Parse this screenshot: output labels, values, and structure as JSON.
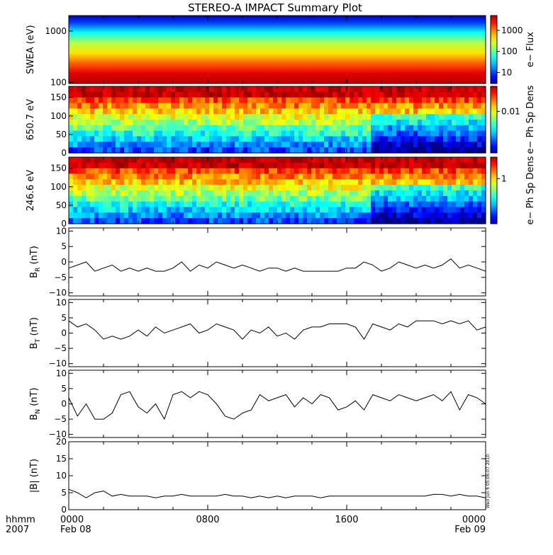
{
  "chart_data": {
    "title": "STEREO-A IMPACT Summary Plot",
    "x_axis": {
      "corner_labels": [
        "hhmm",
        "2007"
      ],
      "range_hours": [
        0,
        24
      ],
      "ticks": [
        {
          "hour": 0,
          "time": "0000",
          "date": "Feb 08"
        },
        {
          "hour": 8,
          "time": "0800",
          "date": ""
        },
        {
          "hour": 16,
          "time": "1600",
          "date": ""
        },
        {
          "hour": 24,
          "time": "0000",
          "date": "Feb 09"
        }
      ]
    },
    "timestamp": "Wed Jun  6 05:06:07 2010",
    "panels": [
      {
        "id": "swea",
        "type": "heatmap",
        "ylabel": "SWEA (eV)",
        "ylog": true,
        "ylim": [
          95,
          2000
        ],
        "yticks": [
          "1000",
          "100"
        ],
        "colorbar": {
          "label": "e− Flux",
          "scale": "log",
          "ticks": [
            "1000",
            "100",
            "10"
          ],
          "range": [
            3,
            5000
          ]
        }
      },
      {
        "id": "pad650",
        "type": "heatmap",
        "ylabel": "650.7 eV",
        "ylim": [
          0,
          180
        ],
        "yticks": [
          "150",
          "100",
          "50",
          "0"
        ],
        "colorbar": {
          "label": "e− Ph Sp Dens",
          "scale": "log",
          "ticks": [
            "0.01"
          ],
          "range": [
            0.001,
            0.04
          ]
        }
      },
      {
        "id": "pad246",
        "type": "heatmap",
        "ylabel": "246.6 eV",
        "ylim": [
          0,
          180
        ],
        "yticks": [
          "150",
          "100",
          "50",
          "0"
        ],
        "colorbar": {
          "label": "e− Ph Sp Dens",
          "scale": "log",
          "ticks": [
            "1"
          ],
          "range": [
            0.1,
            3
          ]
        }
      },
      {
        "id": "br",
        "type": "line",
        "ylabel": "B",
        "ylabel_sub": "R",
        "ylabel_unit": "(nT)",
        "ylim": [
          -11,
          11
        ],
        "yticks": [
          "10",
          "5",
          "0",
          "−5",
          "−10"
        ],
        "x": [
          0,
          0.5,
          1,
          1.5,
          2,
          2.5,
          3,
          3.5,
          4,
          4.5,
          5,
          5.5,
          6,
          6.5,
          7,
          7.5,
          8,
          8.5,
          9,
          9.5,
          10,
          10.5,
          11,
          11.5,
          12,
          12.5,
          13,
          13.5,
          14,
          14.5,
          15,
          15.5,
          16,
          16.5,
          17,
          17.5,
          18,
          18.5,
          19,
          19.5,
          20,
          20.5,
          21,
          21.5,
          22,
          22.5,
          23,
          23.5,
          24
        ],
        "values": [
          -2,
          -1,
          0,
          -3,
          -2,
          -1,
          -3,
          -2,
          -3,
          -2,
          -3,
          -3,
          -2,
          0,
          -3,
          -1,
          -2,
          0,
          -1,
          -2,
          -1,
          -2,
          -3,
          -2,
          -2,
          -3,
          -2,
          -3,
          -3,
          -3,
          -3,
          -3,
          -2,
          -2,
          0,
          -1,
          -3,
          -2,
          0,
          -1,
          -2,
          -1,
          -2,
          -1,
          1,
          -2,
          -1,
          -2,
          -3
        ]
      },
      {
        "id": "bt",
        "type": "line",
        "ylabel": "B",
        "ylabel_sub": "T",
        "ylabel_unit": "(nT)",
        "ylim": [
          -11,
          11
        ],
        "yticks": [
          "10",
          "5",
          "0",
          "−5",
          "−10"
        ],
        "x": [
          0,
          0.5,
          1,
          1.5,
          2,
          2.5,
          3,
          3.5,
          4,
          4.5,
          5,
          5.5,
          6,
          6.5,
          7,
          7.5,
          8,
          8.5,
          9,
          9.5,
          10,
          10.5,
          11,
          11.5,
          12,
          12.5,
          13,
          13.5,
          14,
          14.5,
          15,
          15.5,
          16,
          16.5,
          17,
          17.5,
          18,
          18.5,
          19,
          19.5,
          20,
          20.5,
          21,
          21.5,
          22,
          22.5,
          23,
          23.5,
          24
        ],
        "values": [
          4,
          2,
          3,
          1,
          -2,
          -1,
          -2,
          -1,
          1,
          -1,
          2,
          0,
          1,
          2,
          3,
          0,
          1,
          3,
          2,
          1,
          -2,
          1,
          0,
          2,
          -1,
          0,
          -2,
          1,
          2,
          2,
          3,
          3,
          3,
          2,
          -2,
          3,
          2,
          1,
          3,
          2,
          4,
          4,
          4,
          3,
          4,
          3,
          4,
          1,
          2
        ]
      },
      {
        "id": "bn",
        "type": "line",
        "ylabel": "B",
        "ylabel_sub": "N",
        "ylabel_unit": "(nT)",
        "ylim": [
          -11,
          11
        ],
        "yticks": [
          "10",
          "5",
          "0",
          "−5",
          "−10"
        ],
        "x": [
          0,
          0.5,
          1,
          1.5,
          2,
          2.5,
          3,
          3.5,
          4,
          4.5,
          5,
          5.5,
          6,
          6.5,
          7,
          7.5,
          8,
          8.5,
          9,
          9.5,
          10,
          10.5,
          11,
          11.5,
          12,
          12.5,
          13,
          13.5,
          14,
          14.5,
          15,
          15.5,
          16,
          16.5,
          17,
          17.5,
          18,
          18.5,
          19,
          19.5,
          20,
          20.5,
          21,
          21.5,
          22,
          22.5,
          23,
          23.5,
          24
        ],
        "values": [
          2,
          -4,
          0,
          -5,
          -5,
          -3,
          3,
          4,
          -1,
          -3,
          0,
          -5,
          3,
          4,
          2,
          4,
          3,
          0,
          -4,
          -5,
          -3,
          -2,
          3,
          1,
          2,
          3,
          -1,
          2,
          0,
          3,
          2,
          -2,
          -1,
          1,
          -2,
          3,
          2,
          1,
          3,
          2,
          1,
          2,
          3,
          1,
          4,
          -2,
          3,
          2,
          0
        ]
      },
      {
        "id": "bmag",
        "type": "line",
        "ylabel": "|B|",
        "ylabel_sub": "",
        "ylabel_unit": "(nT)",
        "ylim": [
          0,
          20
        ],
        "yticks": [
          "20",
          "15",
          "10",
          "5",
          "0"
        ],
        "x": [
          0,
          0.5,
          1,
          1.5,
          2,
          2.5,
          3,
          3.5,
          4,
          4.5,
          5,
          5.5,
          6,
          6.5,
          7,
          7.5,
          8,
          8.5,
          9,
          9.5,
          10,
          10.5,
          11,
          11.5,
          12,
          12.5,
          13,
          13.5,
          14,
          14.5,
          15,
          15.5,
          16,
          16.5,
          17,
          17.5,
          18,
          18.5,
          19,
          19.5,
          20,
          20.5,
          21,
          21.5,
          22,
          22.5,
          23,
          23.5,
          24
        ],
        "values": [
          6,
          5,
          3.5,
          5,
          5.5,
          4,
          4.5,
          4,
          4,
          4,
          3.5,
          4,
          4,
          4.5,
          4,
          4,
          4,
          4,
          4.5,
          4,
          4,
          3.5,
          4,
          3.5,
          4,
          3.5,
          4,
          4,
          4,
          3.5,
          4,
          4,
          4,
          4,
          4,
          4,
          4,
          4,
          4,
          4,
          4,
          4,
          4.5,
          4.5,
          4,
          4.5,
          4,
          4,
          3.5
        ]
      }
    ]
  }
}
